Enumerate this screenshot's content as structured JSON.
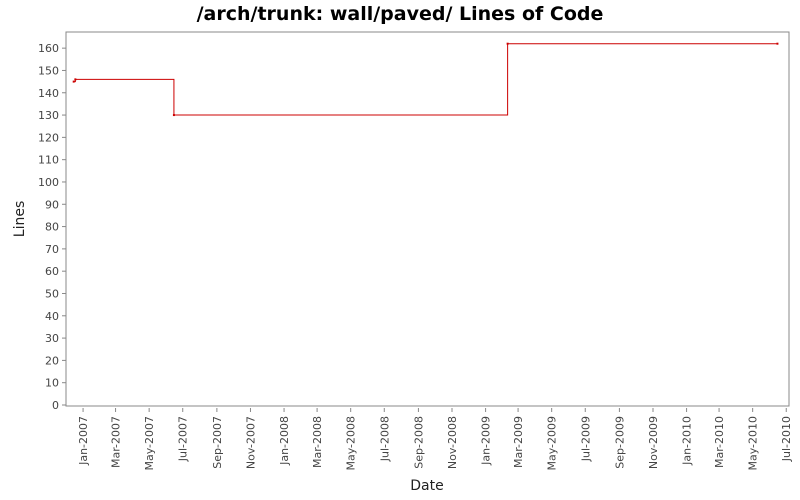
{
  "chart_data": {
    "type": "line",
    "title": "/arch/trunk: wall/paved/ Lines of Code",
    "xlabel": "Date",
    "ylabel": "Lines",
    "ylim": [
      0,
      165
    ],
    "yticks": [
      0,
      10,
      20,
      30,
      40,
      50,
      60,
      70,
      80,
      90,
      100,
      110,
      120,
      130,
      140,
      150,
      160
    ],
    "xlim": [
      "2006-12-01",
      "2010-07-06"
    ],
    "xticks": [
      {
        "date": "2007-01-01",
        "label": "Jan-2007"
      },
      {
        "date": "2007-03-01",
        "label": "Mar-2007"
      },
      {
        "date": "2007-05-01",
        "label": "May-2007"
      },
      {
        "date": "2007-07-01",
        "label": "Jul-2007"
      },
      {
        "date": "2007-09-01",
        "label": "Sep-2007"
      },
      {
        "date": "2007-11-01",
        "label": "Nov-2007"
      },
      {
        "date": "2008-01-01",
        "label": "Jan-2008"
      },
      {
        "date": "2008-03-01",
        "label": "Mar-2008"
      },
      {
        "date": "2008-05-01",
        "label": "May-2008"
      },
      {
        "date": "2008-07-01",
        "label": "Jul-2008"
      },
      {
        "date": "2008-09-01",
        "label": "Sep-2008"
      },
      {
        "date": "2008-11-01",
        "label": "Nov-2008"
      },
      {
        "date": "2009-01-01",
        "label": "Jan-2009"
      },
      {
        "date": "2009-03-01",
        "label": "Mar-2009"
      },
      {
        "date": "2009-05-01",
        "label": "May-2009"
      },
      {
        "date": "2009-07-01",
        "label": "Jul-2009"
      },
      {
        "date": "2009-09-01",
        "label": "Sep-2009"
      },
      {
        "date": "2009-11-01",
        "label": "Nov-2009"
      },
      {
        "date": "2010-01-01",
        "label": "Jan-2010"
      },
      {
        "date": "2010-03-01",
        "label": "Mar-2010"
      },
      {
        "date": "2010-05-01",
        "label": "May-2010"
      },
      {
        "date": "2010-07-01",
        "label": "Jul-2010"
      }
    ],
    "series": [
      {
        "color": "#cc0000",
        "step": true,
        "points": [
          {
            "x": "2006-12-15",
            "y": 145
          },
          {
            "x": "2006-12-18",
            "y": 146
          },
          {
            "x": "2007-06-15",
            "y": 130
          },
          {
            "x": "2009-02-10",
            "y": 162
          },
          {
            "x": "2010-06-15",
            "y": 162
          }
        ]
      }
    ],
    "grid": false,
    "legend": "none"
  }
}
